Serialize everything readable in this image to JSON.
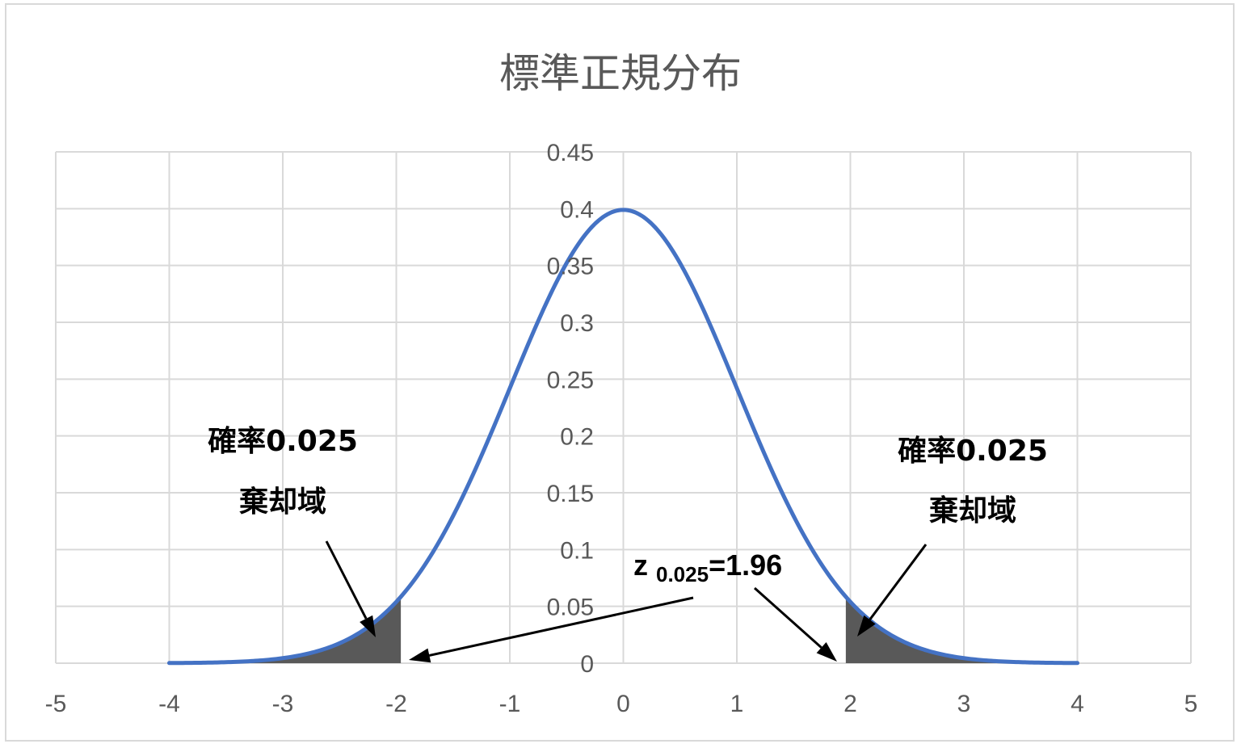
{
  "chart_data": {
    "type": "line",
    "title": "標準正規分布",
    "xlabel": "",
    "ylabel": "",
    "xlim": [
      -5,
      5
    ],
    "ylim": [
      0,
      0.45
    ],
    "grid": true,
    "x_ticks": [
      "-5",
      "-4",
      "-3",
      "-2",
      "-1",
      "0",
      "1",
      "2",
      "3",
      "4",
      "5"
    ],
    "y_ticks": [
      "0",
      "0.05",
      "0.1",
      "0.15",
      "0.2",
      "0.25",
      "0.3",
      "0.35",
      "0.4",
      "0.45"
    ],
    "series": [
      {
        "x": [
          -4,
          -3.5,
          -3,
          -2.5,
          -2,
          -1.96,
          -1.5,
          -1,
          -0.5,
          0,
          0.5,
          1,
          1.5,
          1.96,
          2,
          2.5,
          3,
          3.5,
          4
        ],
        "y": [
          0.0001,
          0.0009,
          0.0044,
          0.0175,
          0.054,
          0.0584,
          0.1295,
          0.242,
          0.3521,
          0.3989,
          0.3521,
          0.242,
          0.1295,
          0.0584,
          0.054,
          0.0175,
          0.0044,
          0.0009,
          0.0001
        ],
        "color": "#4472c4"
      }
    ],
    "shaded_regions": [
      {
        "from": -4,
        "to": -1.96,
        "color": "#595959"
      },
      {
        "from": 1.96,
        "to": 4,
        "color": "#595959"
      }
    ],
    "annotations": {
      "left_prob": "確率0.025",
      "left_region": "棄却域",
      "right_prob": "確率0.025",
      "right_region": "棄却域",
      "z_main": "z",
      "z_sub": "0.025",
      "z_value": "=1.96"
    }
  }
}
